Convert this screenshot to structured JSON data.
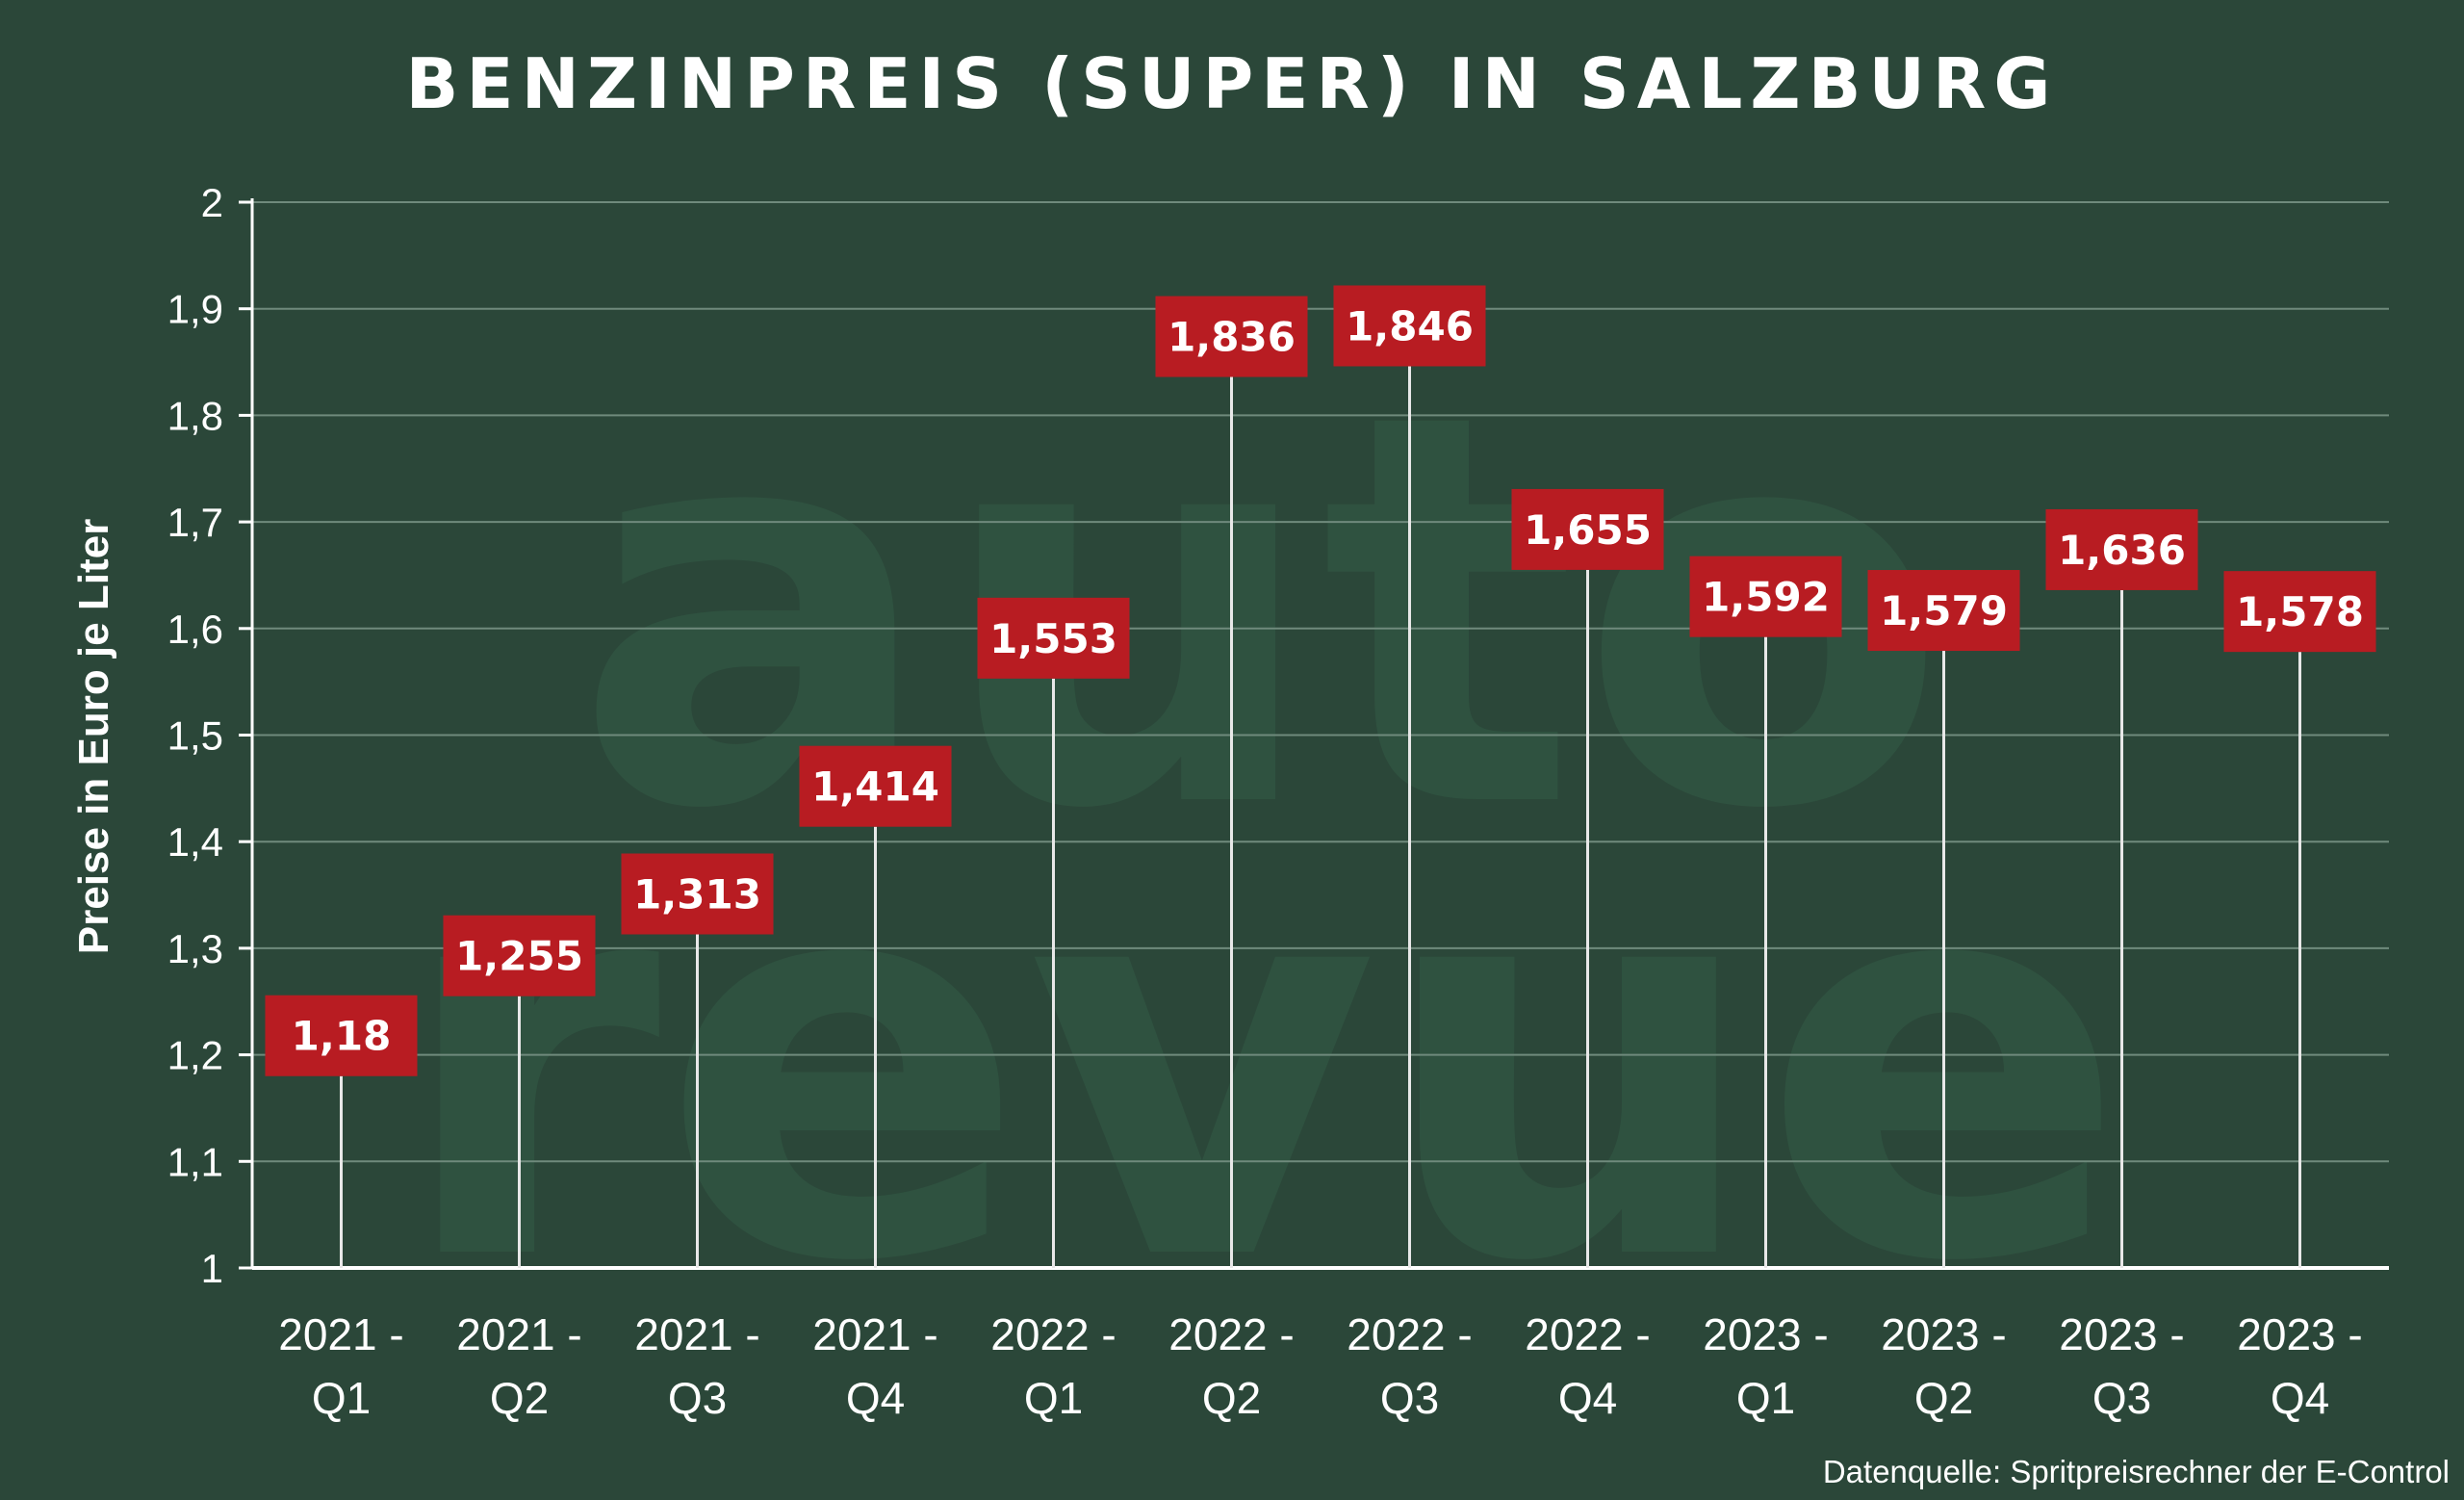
{
  "watermark": {
    "line1": "auto",
    "line2": "revue"
  },
  "source": "Datenquelle: Spritpreisrechner der E-Control",
  "chart_data": {
    "type": "bar",
    "title": "BENZINPREIS (SUPER) IN SALZBURG",
    "xlabel": "",
    "ylabel": "Preise in Euro je Liter",
    "ylim": [
      1,
      2
    ],
    "yticks": [
      "1",
      "1,1",
      "1,2",
      "1,3",
      "1,4",
      "1,5",
      "1,6",
      "1,7",
      "1,8",
      "1,9",
      "2"
    ],
    "grid": true,
    "categories": [
      [
        "2021 -",
        "Q1"
      ],
      [
        "2021 -",
        "Q2"
      ],
      [
        "2021 -",
        "Q3"
      ],
      [
        "2021 -",
        "Q4"
      ],
      [
        "2022 -",
        "Q1"
      ],
      [
        "2022 -",
        "Q2"
      ],
      [
        "2022 -",
        "Q3"
      ],
      [
        "2022 -",
        "Q4"
      ],
      [
        "2023 -",
        "Q1"
      ],
      [
        "2023 -",
        "Q2"
      ],
      [
        "2023 -",
        "Q3"
      ],
      [
        "2023 -",
        "Q4"
      ]
    ],
    "values": [
      1.18,
      1.255,
      1.313,
      1.414,
      1.553,
      1.836,
      1.846,
      1.655,
      1.592,
      1.579,
      1.636,
      1.578
    ],
    "value_labels": [
      "1,18",
      "1,255",
      "1,313",
      "1,414",
      "1,553",
      "1,836",
      "1,846",
      "1,655",
      "1,592",
      "1,579",
      "1,636",
      "1,578"
    ],
    "colors": {
      "background": "#2b4739",
      "label_box": "#b81c22",
      "stem": "#e8e8e8",
      "grid": "#6f8a7c",
      "axis": "#ffffff"
    }
  }
}
